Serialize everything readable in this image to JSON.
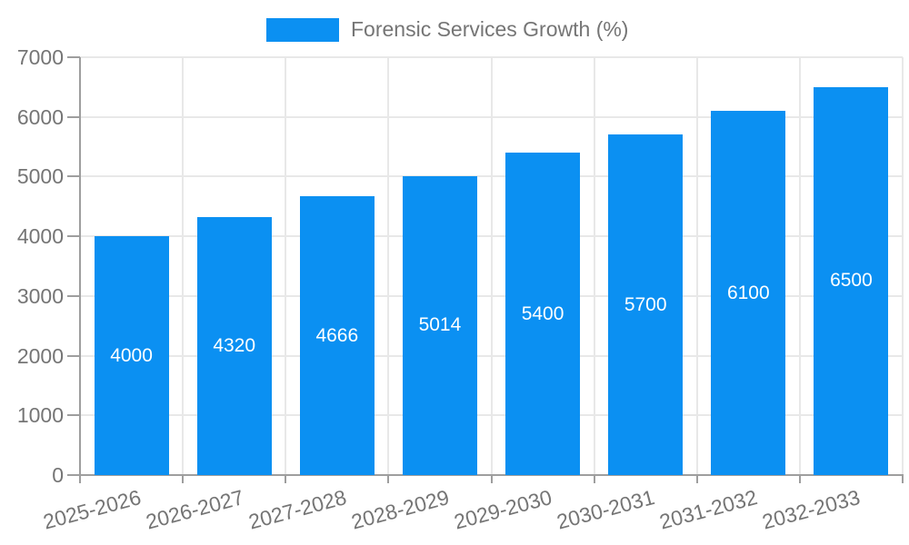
{
  "chart_data": {
    "type": "bar",
    "title": "",
    "legend": "Forensic Services Growth (%)",
    "legend_position": "top",
    "categories": [
      "2025-2026",
      "2026-2027",
      "2027-2028",
      "2028-2029",
      "2029-2030",
      "2030-2031",
      "2031-2032",
      "2032-2033"
    ],
    "series": [
      {
        "name": "Forensic Services Growth (%)",
        "values": [
          4000,
          4320,
          4666,
          5014,
          5400,
          5700,
          6100,
          6500
        ]
      }
    ],
    "value_labels_shown": true,
    "xlabel": "",
    "ylabel": "",
    "ylim": [
      0,
      7000
    ],
    "yticks": [
      0,
      1000,
      2000,
      3000,
      4000,
      5000,
      6000,
      7000
    ],
    "grid": true,
    "colors": {
      "bar": "#0b90f2",
      "value_label": "#ffffff",
      "axis_text": "#757575",
      "axis_line": "#9e9e9e",
      "gridline": "#e8e8e8",
      "background": "#ffffff"
    }
  }
}
